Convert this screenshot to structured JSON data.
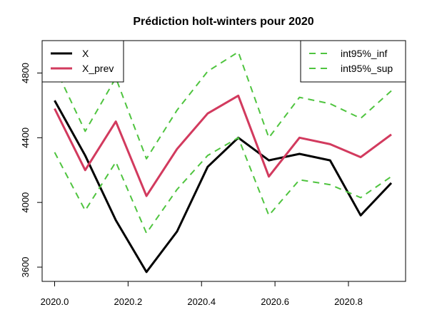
{
  "chart_data": {
    "type": "line",
    "title": "Prédiction holt-winters pour 2020",
    "xlabel": "",
    "ylabel": "",
    "xlim": [
      2020.0,
      2020.9167
    ],
    "ylim": [
      3570,
      4980
    ],
    "x": [
      2020.0,
      2020.0833,
      2020.1667,
      2020.25,
      2020.3333,
      2020.4167,
      2020.5,
      2020.5833,
      2020.6667,
      2020.75,
      2020.8333,
      2020.9167
    ],
    "x_ticks": [
      2020.0,
      2020.2,
      2020.4,
      2020.6,
      2020.8
    ],
    "x_tick_labels": [
      "2020.0",
      "2020.2",
      "2020.4",
      "2020.6",
      "2020.8"
    ],
    "y_ticks": [
      3600,
      4000,
      4400,
      4800
    ],
    "y_tick_labels": [
      "3600",
      "4000",
      "4400",
      "4800"
    ],
    "grid": false,
    "series": [
      {
        "name": "X",
        "color": "#000000",
        "style": "solid",
        "values": [
          4630,
          4290,
          3890,
          3570,
          3820,
          4220,
          4400,
          4260,
          4300,
          4260,
          3920,
          4120
        ]
      },
      {
        "name": "X_prev",
        "color": "#d23a5e",
        "style": "solid",
        "values": [
          4580,
          4200,
          4500,
          4040,
          4330,
          4550,
          4660,
          4160,
          4400,
          4360,
          4280,
          4420
        ]
      },
      {
        "name": "int95%_inf",
        "color": "#4fc43f",
        "style": "dashed",
        "values": [
          4310,
          3950,
          4250,
          3810,
          4080,
          4290,
          4400,
          3920,
          4140,
          4110,
          4030,
          4160
        ]
      },
      {
        "name": "int95%_sup",
        "color": "#4fc43f",
        "style": "dashed",
        "values": [
          4840,
          4440,
          4770,
          4270,
          4570,
          4810,
          4930,
          4400,
          4650,
          4610,
          4520,
          4690
        ]
      }
    ],
    "legends": [
      {
        "placement": "top-left",
        "entries": [
          "X",
          "X_prev"
        ]
      },
      {
        "placement": "top-right",
        "entries": [
          "int95%_inf",
          "int95%_sup"
        ]
      }
    ]
  }
}
